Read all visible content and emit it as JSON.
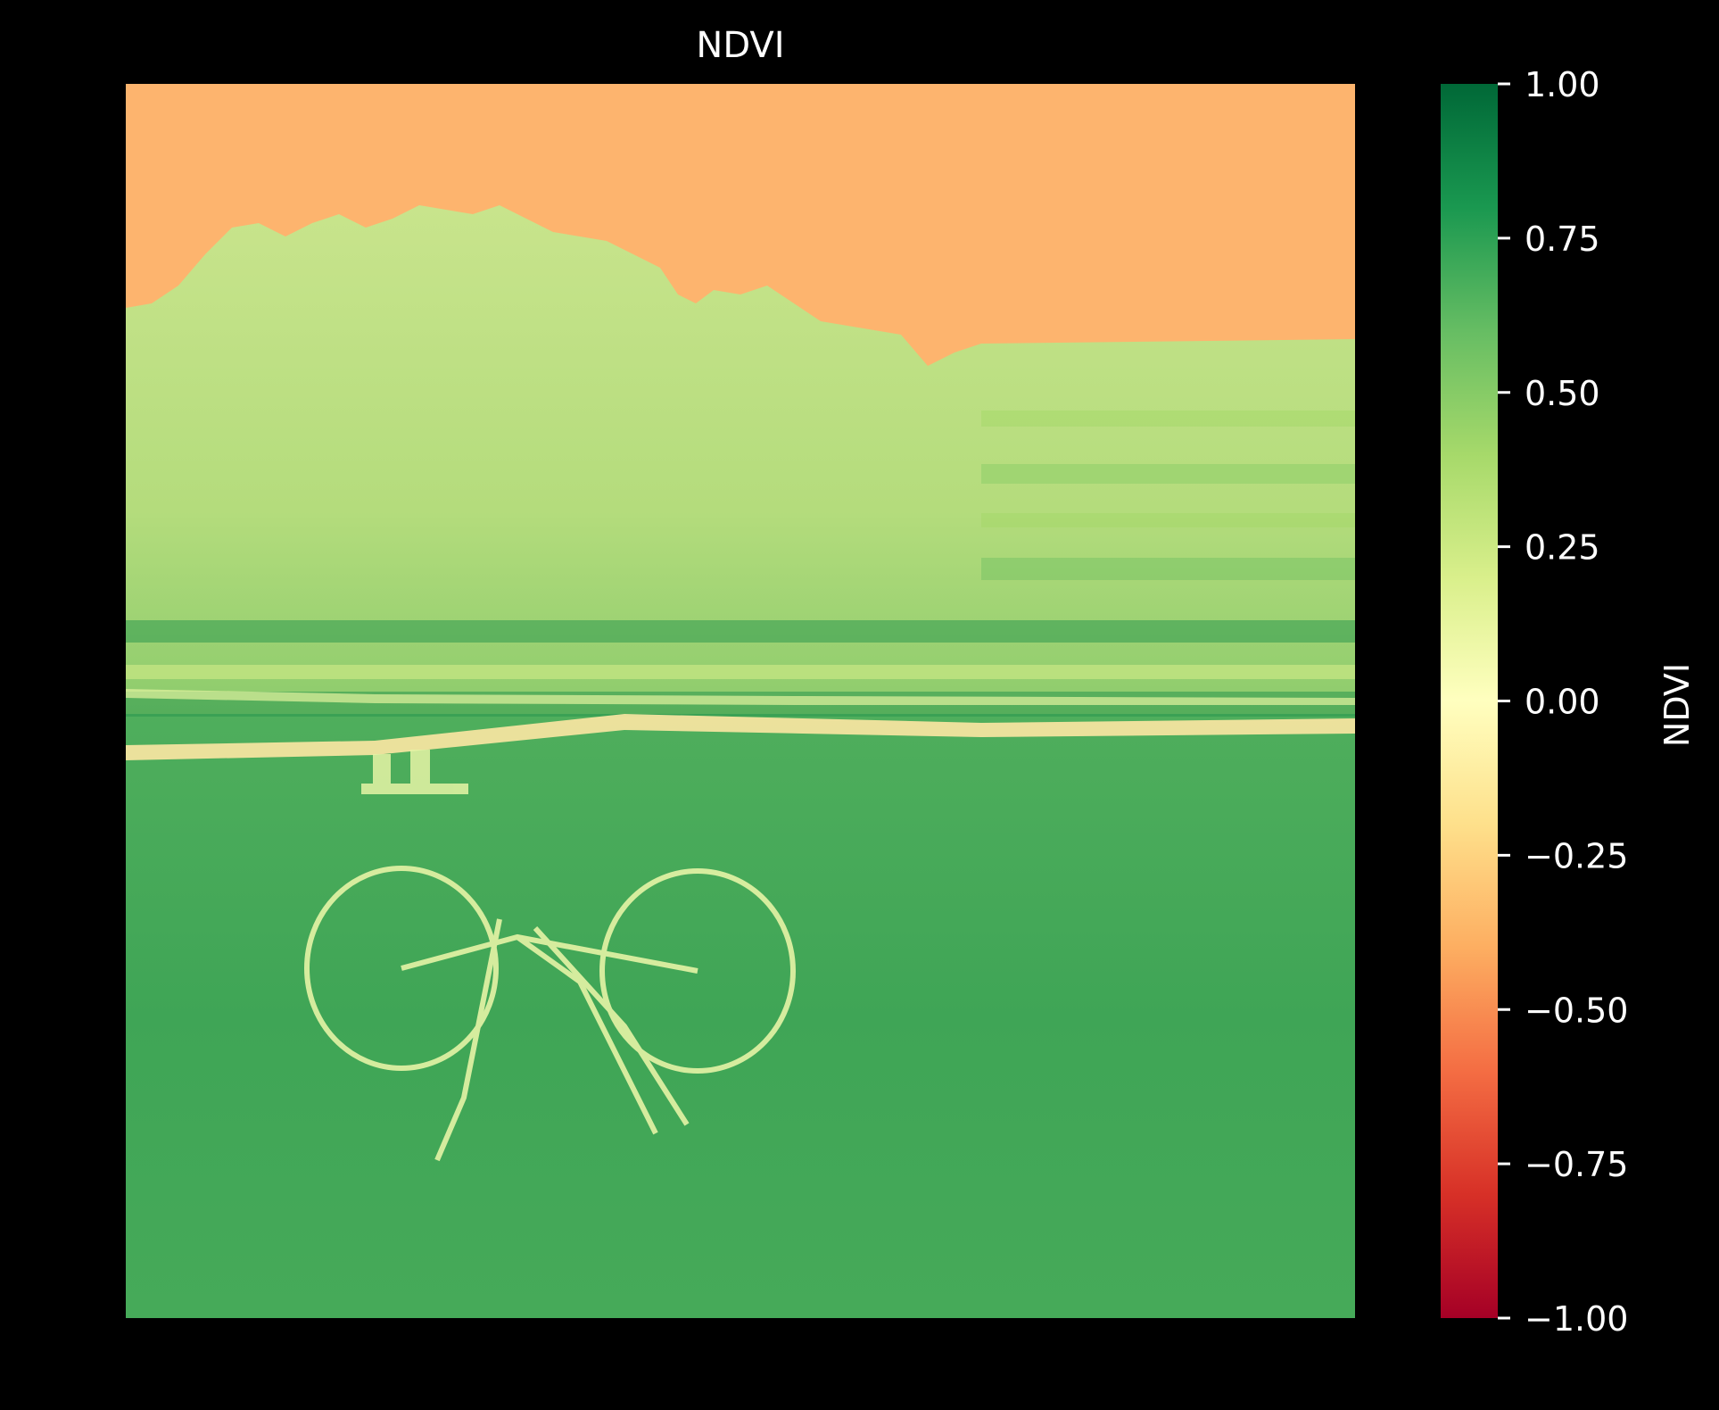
{
  "chart_data": {
    "type": "heatmap",
    "title": "NDVI",
    "colormap": "RdYlGn",
    "colorbar": {
      "label": "NDVI",
      "range": [
        -1.0,
        1.0
      ],
      "ticks": [
        1.0,
        0.75,
        0.5,
        0.25,
        0.0,
        -0.25,
        -0.5,
        -0.75,
        -1.0
      ],
      "tick_labels": [
        "1.00",
        "0.75",
        "0.50",
        "0.25",
        "0.00",
        "−0.25",
        "−0.50",
        "−0.75",
        "−1.00"
      ],
      "stops": [
        {
          "value": -1.0,
          "color": "#a50026"
        },
        {
          "value": -0.8,
          "color": "#d73027"
        },
        {
          "value": -0.6,
          "color": "#f46d43"
        },
        {
          "value": -0.4,
          "color": "#fdae61"
        },
        {
          "value": -0.2,
          "color": "#fee08b"
        },
        {
          "value": 0.0,
          "color": "#ffffbf"
        },
        {
          "value": 0.2,
          "color": "#d9ef8b"
        },
        {
          "value": 0.4,
          "color": "#a6d96a"
        },
        {
          "value": 0.6,
          "color": "#66bd63"
        },
        {
          "value": 0.8,
          "color": "#1a9850"
        },
        {
          "value": 1.0,
          "color": "#006837"
        }
      ]
    },
    "regions": {
      "sky": {
        "ndvi": -0.35,
        "color": "#fdb46e"
      },
      "trees": {
        "ndvi": 0.35,
        "color": "#bfe085"
      },
      "grass": {
        "ndvi": 0.65,
        "color": "#4fae5c"
      },
      "path": {
        "ndvi": -0.05,
        "color": "#fde7a3"
      },
      "bicycle": {
        "ndvi": 0.1,
        "color": "#e6f4a6"
      }
    },
    "xaxis_visible": false,
    "yaxis_visible": false,
    "background": "#000000"
  }
}
